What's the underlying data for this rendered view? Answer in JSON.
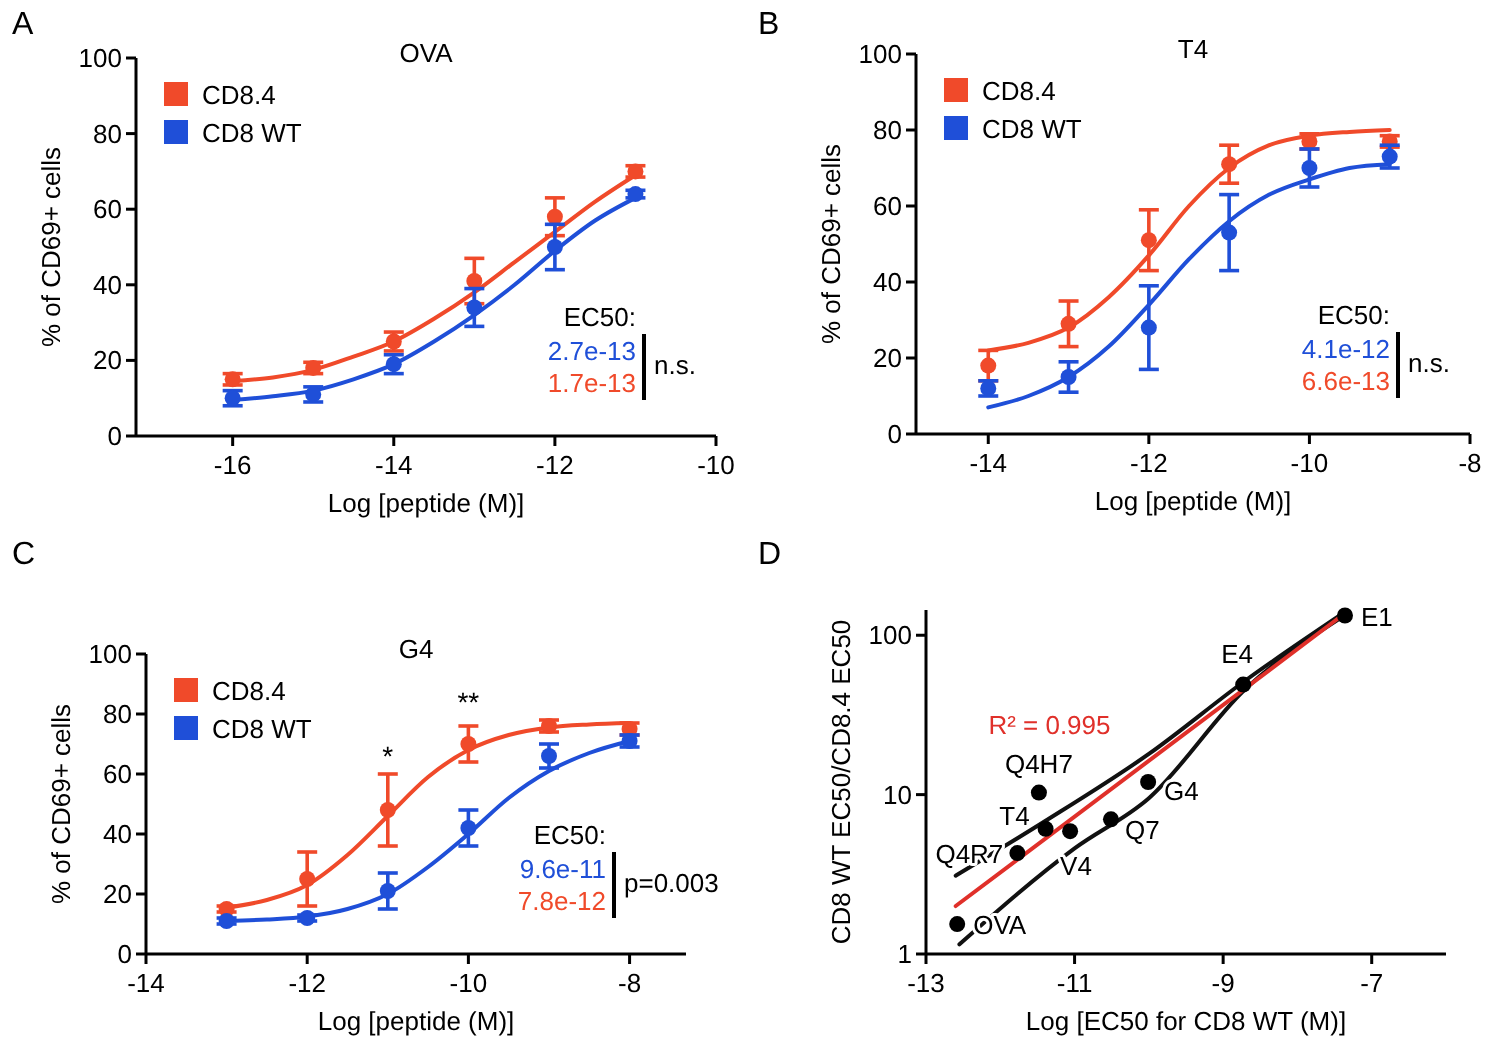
{
  "chart_data": [
    {
      "type": "scatter",
      "title": "OVA",
      "xlabel": "Log [peptide (M)]",
      "ylabel": "% of CD69+ cells",
      "xlim": [
        -17.2,
        -10
      ],
      "xticks": [
        -16,
        -14,
        -12,
        -10
      ],
      "ylim": [
        0,
        100
      ],
      "yticks": [
        0,
        20,
        40,
        60,
        80,
        100
      ],
      "legend": "top left",
      "line_style": "solid",
      "annotations": [
        "A",
        "EC50:",
        "2.7e-13",
        "1.7e-13",
        "n.s."
      ],
      "series": [
        {
          "type": "line",
          "color": "#f04a2a",
          "x": [
            -16,
            -15.5,
            -15,
            -14.5,
            -14,
            -13.5,
            -13,
            -12.5,
            -12,
            -11.5,
            -11
          ],
          "values": [
            14.5,
            15.5,
            17.5,
            21,
            25,
            31,
            38,
            46,
            54,
            62,
            69
          ]
        },
        {
          "type": "line",
          "color": "#1f4fd8",
          "x": [
            -16,
            -15.5,
            -15,
            -14.5,
            -14,
            -13.5,
            -13,
            -12.5,
            -12,
            -11.5,
            -11
          ],
          "values": [
            9.5,
            10.5,
            12,
            15,
            19,
            25,
            32,
            40,
            49,
            57,
            63
          ]
        },
        {
          "name": "CD8.4",
          "marker": "circle",
          "color": "#f04a2a",
          "x": [
            -16,
            -15,
            -14,
            -13,
            -12,
            -11
          ],
          "values": [
            15,
            18,
            25,
            41,
            58,
            70
          ],
          "errors": [
            1.5,
            1.5,
            2.5,
            6,
            5,
            1.5
          ]
        },
        {
          "name": "CD8 WT",
          "marker": "circle",
          "color": "#1f4fd8",
          "x": [
            -16,
            -15,
            -14,
            -13,
            -12,
            -11
          ],
          "values": [
            10,
            11,
            19,
            34,
            50,
            64
          ],
          "errors": [
            2,
            2,
            2.5,
            5,
            6,
            1
          ]
        }
      ]
    },
    {
      "type": "scatter",
      "title": "T4",
      "xlabel": "Log [peptide (M)]",
      "ylabel": "% of CD69+ cells",
      "xlim": [
        -14.9,
        -8
      ],
      "xticks": [
        -14,
        -12,
        -10,
        -8
      ],
      "ylim": [
        0,
        100
      ],
      "yticks": [
        0,
        20,
        40,
        60,
        80,
        100
      ],
      "legend": "top left",
      "line_style": "solid",
      "annotations": [
        "B",
        "EC50:",
        "4.1e-12",
        "6.6e-13",
        "n.s."
      ],
      "series": [
        {
          "type": "line",
          "color": "#f04a2a",
          "x": [
            -14,
            -13.5,
            -13,
            -12.5,
            -12,
            -11.5,
            -11,
            -10.5,
            -10,
            -9.5,
            -9
          ],
          "values": [
            22,
            24,
            28,
            36,
            47,
            60,
            70,
            76,
            78.5,
            79.5,
            80
          ]
        },
        {
          "type": "line",
          "color": "#1f4fd8",
          "x": [
            -14,
            -13.5,
            -13,
            -12.5,
            -12,
            -11.5,
            -11,
            -10.5,
            -10,
            -9.5,
            -9
          ],
          "values": [
            7,
            10,
            15,
            23,
            34,
            46,
            56,
            63,
            67,
            70,
            71
          ]
        },
        {
          "name": "CD8.4",
          "marker": "circle",
          "color": "#f04a2a",
          "x": [
            -14,
            -13,
            -12,
            -11,
            -10,
            -9
          ],
          "values": [
            18,
            29,
            51,
            71,
            77,
            77
          ],
          "errors": [
            4,
            6,
            8,
            5,
            2,
            1.5
          ]
        },
        {
          "name": "CD8 WT",
          "marker": "circle",
          "color": "#1f4fd8",
          "x": [
            -14,
            -13,
            -12,
            -11,
            -10,
            -9
          ],
          "values": [
            12,
            15,
            28,
            53,
            70,
            73
          ],
          "errors": [
            2,
            4,
            11,
            10,
            5,
            3
          ]
        }
      ]
    },
    {
      "type": "scatter",
      "title": "G4",
      "xlabel": "Log [peptide (M)]",
      "ylabel": "% of CD69+ cells",
      "xlim": [
        -14,
        -7.3
      ],
      "xticks": [
        -14,
        -12,
        -10,
        -8
      ],
      "ylim": [
        0,
        100
      ],
      "yticks": [
        0,
        20,
        40,
        60,
        80,
        100
      ],
      "legend": "top left",
      "line_style": "solid",
      "annotations": [
        "C",
        "EC50:",
        "9.6e-11",
        "7.8e-12",
        "p=0.003",
        {
          "text": "*",
          "x": -11,
          "y": 56
        },
        {
          "text": "**",
          "x": -10,
          "y": 74
        }
      ],
      "series": [
        {
          "type": "line",
          "color": "#f04a2a",
          "x": [
            -13,
            -12.5,
            -12,
            -11.5,
            -11,
            -10.5,
            -10,
            -9.5,
            -9,
            -8.5,
            -8
          ],
          "values": [
            15.5,
            18,
            23,
            33,
            46,
            59,
            68,
            73,
            75.5,
            76.5,
            77
          ]
        },
        {
          "type": "line",
          "color": "#1f4fd8",
          "x": [
            -13,
            -12.5,
            -12,
            -11.5,
            -11,
            -10.5,
            -10,
            -9.5,
            -9,
            -8.5,
            -8
          ],
          "values": [
            11,
            11.5,
            12.5,
            15,
            20,
            29,
            40,
            52,
            61,
            67,
            71
          ]
        },
        {
          "name": "CD8.4",
          "marker": "circle",
          "color": "#f04a2a",
          "x": [
            -13,
            -12,
            -11,
            -10,
            -9,
            -8
          ],
          "values": [
            15,
            25,
            48,
            70,
            76,
            75
          ],
          "errors": [
            1,
            9,
            12,
            6,
            2,
            2
          ]
        },
        {
          "name": "CD8 WT",
          "marker": "circle",
          "color": "#1f4fd8",
          "x": [
            -13,
            -12,
            -11,
            -10,
            -9,
            -8
          ],
          "values": [
            11,
            12,
            21,
            42,
            66,
            71
          ],
          "errors": [
            1,
            1,
            6,
            6,
            4,
            2
          ]
        }
      ]
    },
    {
      "type": "scatter",
      "xlabel": "Log [EC50 for CD8 WT (M)]",
      "ylabel": "CD8 WT EC50/CD8.4 EC50",
      "xlim": [
        -13,
        -6
      ],
      "xticks": [
        -13,
        -11,
        -9,
        -7
      ],
      "ylim": [
        1,
        144
      ],
      "yticks": [
        1,
        10,
        100
      ],
      "log": "y",
      "legend": false,
      "line_style": "solid",
      "annotations": [
        "D",
        {
          "text": "OVA",
          "x": -12.58,
          "y": 1.54
        },
        {
          "text": "Q4R7",
          "x": -11.77,
          "y": 4.3
        },
        {
          "text": "T4",
          "x": -11.39,
          "y": 6.1
        },
        {
          "text": "Q4H7",
          "x": -11.48,
          "y": 10.3
        },
        {
          "text": "V4",
          "x": -11.06,
          "y": 5.9
        },
        {
          "text": "Q7",
          "x": -10.51,
          "y": 7
        },
        {
          "text": "G4",
          "x": -10.01,
          "y": 12
        },
        {
          "text": "E4",
          "x": -8.73,
          "y": 49
        },
        {
          "text": "E1",
          "x": -7.36,
          "y": 133
        }
      ],
      "series": [
        {
          "type": "line",
          "color": "#111111",
          "x": [
            -12.6,
            -11.4,
            -10,
            -8.7,
            -7.4
          ],
          "values": [
            3.1,
            6.8,
            18,
            52,
            136
          ]
        },
        {
          "type": "line",
          "color": "#111111",
          "x": [
            -12.55,
            -11,
            -10,
            -8.7,
            -7.4
          ],
          "values": [
            1.15,
            4.6,
            9.5,
            46,
            130
          ]
        },
        {
          "type": "line",
          "name": "R² = 0.995",
          "color": "#e0302a",
          "x": [
            -12.6,
            -7.4
          ],
          "values": [
            2,
            133
          ]
        },
        {
          "marker": "circle",
          "color": "#000000",
          "x": [
            -12.58,
            -11.77,
            -11.39,
            -11.48,
            -11.06,
            -10.51,
            -10.01,
            -8.73,
            -7.36
          ],
          "values": [
            1.54,
            4.3,
            6.1,
            10.3,
            5.9,
            7,
            12,
            49,
            133
          ]
        }
      ]
    }
  ]
}
